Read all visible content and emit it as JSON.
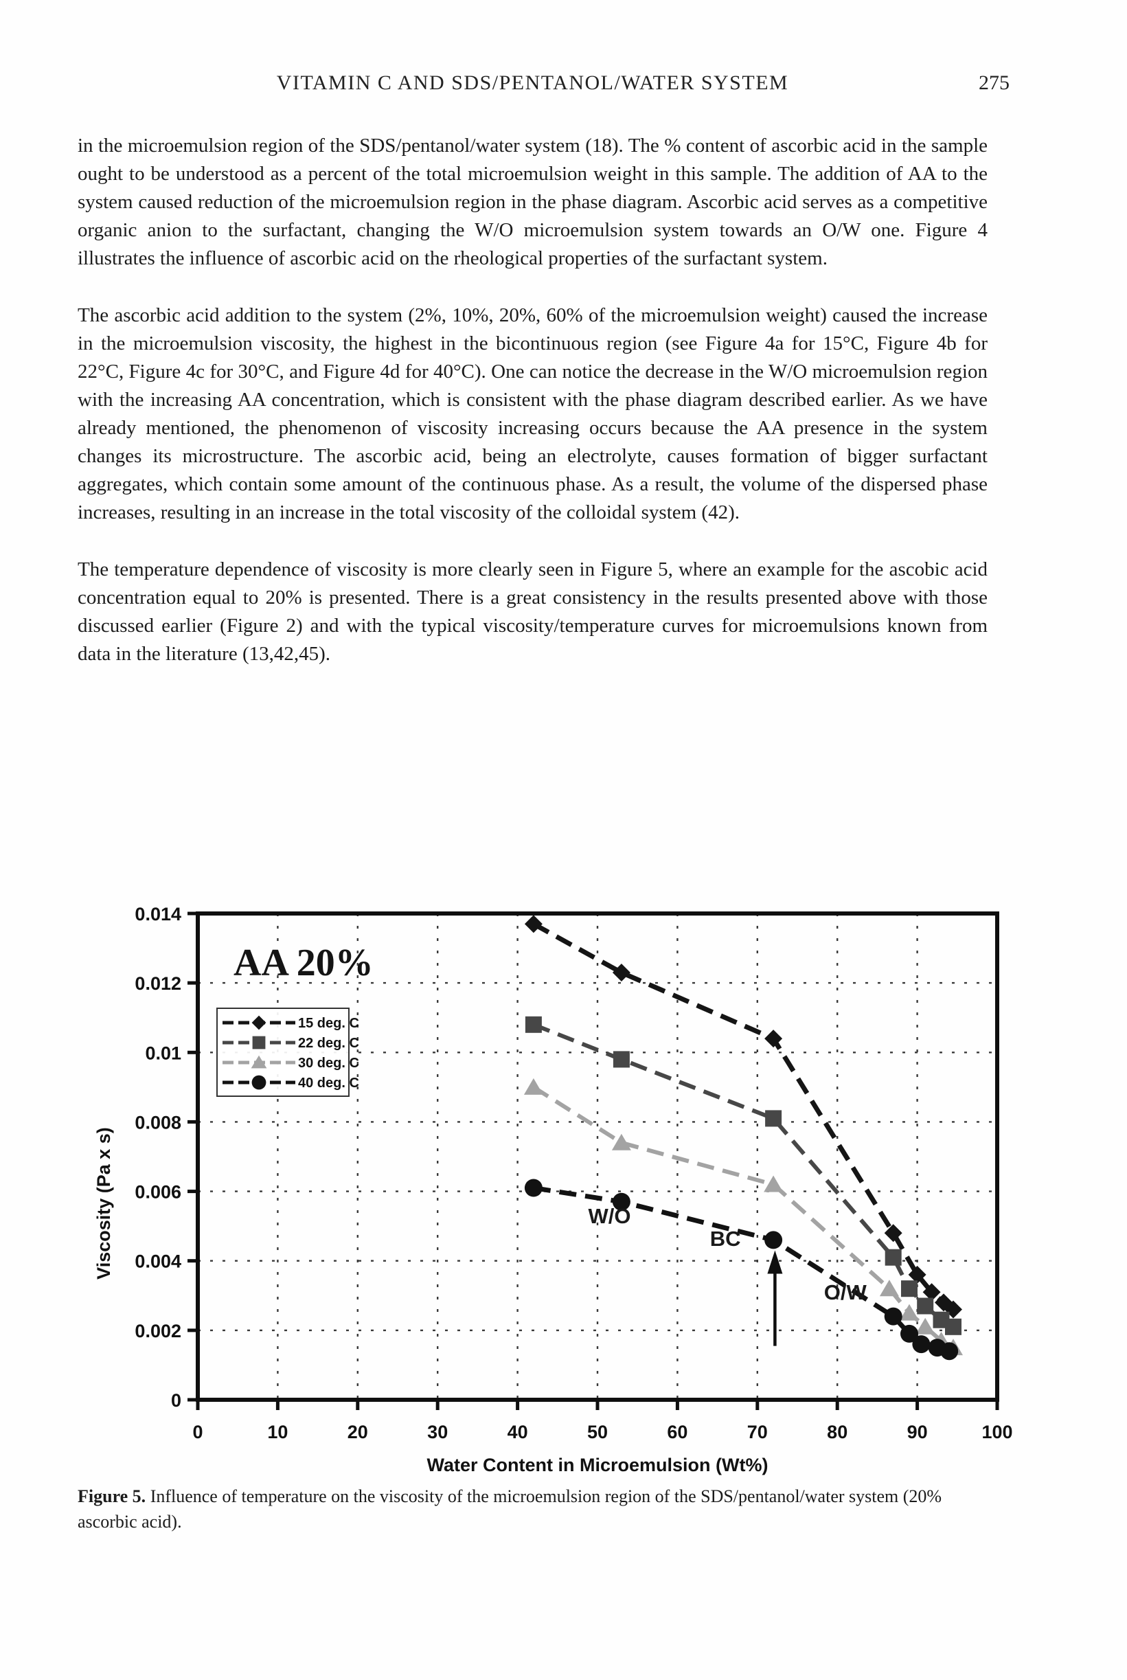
{
  "page": {
    "header": {
      "title": "VITAMIN C AND SDS/PENTANOL/WATER SYSTEM",
      "page_number": "275"
    },
    "paragraphs": [
      "in the microemulsion region of the SDS/pentanol/water system (18). The % content of ascorbic acid in the sample ought to be understood as a percent of the total microemulsion weight in this sample. The addition of AA to the system caused reduction of the microemulsion region in the phase diagram. Ascorbic acid serves as a competitive organic anion to the surfactant, changing the W/O microemulsion system towards an O/W one. Figure 4 illustrates the influence of ascorbic acid on the rheological properties of the surfactant system.",
      "The ascorbic acid addition to the system (2%, 10%, 20%, 60% of the microemulsion weight) caused the increase in the microemulsion viscosity, the highest in the bicontinuous region (see Figure 4a for 15°C, Figure 4b for 22°C, Figure 4c for 30°C, and Figure 4d for 40°C). One can notice the decrease in the W/O microemulsion region with the increasing AA concentration, which is consistent with the phase diagram described earlier. As we have already mentioned, the phenomenon of viscosity increasing occurs because the AA presence in the system changes its microstructure. The ascorbic acid, being an electrolyte, causes formation of bigger surfactant aggregates, which contain some amount of the continuous phase. As a result, the volume of the dispersed phase increases, resulting in an increase in the total viscosity of the colloidal system (42).",
      "The temperature dependence of viscosity is more clearly seen in Figure 5, where an example for the ascobic acid concentration equal to 20% is presented. There is a great consistency in the results presented above with those discussed earlier (Figure 2) and with the typical viscosity/temperature curves for microemulsions known from data in the literature (13,42,45)."
    ],
    "caption": {
      "label": "Figure 5.",
      "text": " Influence of temperature on the viscosity of the microemulsion region of the SDS/pentanol/water system (20% ascorbic acid)."
    }
  },
  "chart_data": {
    "type": "line",
    "title": "AA 20%",
    "xlabel": "Water Content in Microemulsion (Wt%)",
    "ylabel": "Viscosity (Pa x s)",
    "xlim": [
      0,
      100
    ],
    "ylim": [
      0,
      0.014
    ],
    "x_ticks": [
      0,
      10,
      20,
      30,
      40,
      50,
      60,
      70,
      80,
      90,
      100
    ],
    "y_ticks": [
      {
        "v": 0,
        "label": "0"
      },
      {
        "v": 0.002,
        "label": "0.002"
      },
      {
        "v": 0.004,
        "label": "0.004"
      },
      {
        "v": 0.006,
        "label": "0.006"
      },
      {
        "v": 0.008,
        "label": "0.008"
      },
      {
        "v": 0.01,
        "label": "0.01"
      },
      {
        "v": 0.012,
        "label": "0.012"
      },
      {
        "v": 0.014,
        "label": "0.014"
      }
    ],
    "grid": true,
    "legend_position": "upper-left",
    "series": [
      {
        "name": "15 deg. C",
        "marker": "diamond",
        "color": "#151515",
        "line_width": 7,
        "points": [
          [
            42,
            0.0137
          ],
          [
            53,
            0.0123
          ],
          [
            72,
            0.0104
          ],
          [
            87,
            0.0048
          ],
          [
            90,
            0.0036
          ],
          [
            91.8,
            0.0031
          ],
          [
            93.3,
            0.0028
          ],
          [
            94.5,
            0.0026
          ]
        ]
      },
      {
        "name": "22 deg. C",
        "marker": "square",
        "color": "#474747",
        "line_width": 6,
        "points": [
          [
            42,
            0.0108
          ],
          [
            53,
            0.0098
          ],
          [
            72,
            0.0081
          ],
          [
            87,
            0.0041
          ],
          [
            89,
            0.0032
          ],
          [
            91,
            0.0027
          ],
          [
            93,
            0.0023
          ],
          [
            94.5,
            0.0021
          ]
        ]
      },
      {
        "name": "30 deg. C",
        "marker": "triangle",
        "color": "#a3a3a3",
        "line_width": 6,
        "points": [
          [
            42,
            0.009
          ],
          [
            53,
            0.0074
          ],
          [
            72,
            0.0062
          ],
          [
            86.5,
            0.0032
          ],
          [
            89,
            0.0025
          ],
          [
            91,
            0.0021
          ],
          [
            93,
            0.0017
          ],
          [
            94.5,
            0.0015
          ]
        ]
      },
      {
        "name": "40 deg. C",
        "marker": "circle",
        "color": "#121212",
        "line_width": 7,
        "points": [
          [
            42,
            0.0061
          ],
          [
            53,
            0.0057
          ],
          [
            72,
            0.0046
          ],
          [
            87,
            0.0024
          ],
          [
            89,
            0.0019
          ],
          [
            90.5,
            0.0016
          ],
          [
            92.5,
            0.0015
          ],
          [
            94,
            0.0014
          ]
        ]
      }
    ],
    "annotations": [
      {
        "text": "W/O",
        "x": 51.5,
        "y": 0.0053
      },
      {
        "text": "BC",
        "x": 66,
        "y": 0.00465
      },
      {
        "text": "O/W",
        "x": 81,
        "y": 0.0031
      }
    ],
    "arrow": {
      "x": 72.2,
      "y_from": 0.00155,
      "y_to": 0.0043
    }
  }
}
